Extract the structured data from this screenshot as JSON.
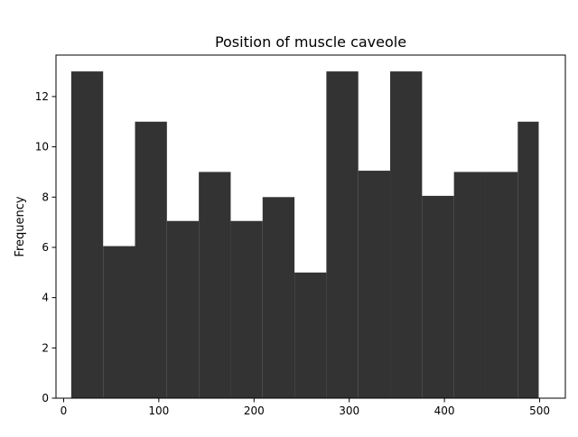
{
  "chart_data": {
    "type": "bar",
    "title": "Position of muscle caveole",
    "xlabel": "",
    "ylabel": "Frequency",
    "bin_edges": [
      8,
      41.5,
      75,
      108.5,
      142,
      175.5,
      209,
      242.5,
      276,
      309.5,
      343,
      376.5,
      410,
      443.5,
      477,
      499
    ],
    "values": [
      13,
      6.05,
      11,
      7.05,
      9,
      7.05,
      8,
      5,
      13,
      9.05,
      13,
      8.05,
      9,
      9,
      11
    ],
    "xlim": [
      -8,
      527
    ],
    "ylim": [
      0,
      13.65
    ],
    "x_ticks": [
      0,
      100,
      200,
      300,
      400,
      500
    ],
    "y_ticks": [
      0,
      2,
      4,
      6,
      8,
      10,
      12
    ],
    "bar_color": "#333333",
    "grid": false,
    "legend": "none"
  }
}
